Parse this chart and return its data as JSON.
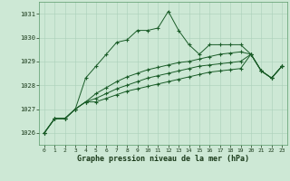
{
  "title": "Graphe pression niveau de la mer (hPa)",
  "background_color": "#cde8d5",
  "plot_bg_color": "#cde8d5",
  "grid_color": "#aacfba",
  "line_color": "#1a5c28",
  "ylim": [
    1025.5,
    1031.5
  ],
  "xlim": [
    -0.5,
    23.5
  ],
  "yticks": [
    1026,
    1027,
    1028,
    1029,
    1030,
    1031
  ],
  "xticks": [
    0,
    1,
    2,
    3,
    4,
    5,
    6,
    7,
    8,
    9,
    10,
    11,
    12,
    13,
    14,
    15,
    16,
    17,
    18,
    19,
    20,
    21,
    22,
    23
  ],
  "series": [
    [
      1026.0,
      1026.6,
      1026.6,
      1027.0,
      1028.3,
      1028.8,
      1029.3,
      1029.8,
      1029.9,
      1030.3,
      1030.3,
      1030.4,
      1031.1,
      1030.3,
      1029.7,
      1029.3,
      1029.7,
      1029.7,
      1029.7,
      1029.7,
      1029.3,
      1028.6,
      1028.3,
      1028.8
    ],
    [
      1026.0,
      1026.6,
      1026.6,
      1027.0,
      1027.3,
      1027.65,
      1027.9,
      1028.15,
      1028.35,
      1028.5,
      1028.65,
      1028.75,
      1028.85,
      1028.95,
      1029.0,
      1029.1,
      1029.2,
      1029.3,
      1029.35,
      1029.4,
      1029.3,
      1028.6,
      1028.3,
      1028.8
    ],
    [
      1026.0,
      1026.6,
      1026.6,
      1027.0,
      1027.3,
      1027.45,
      1027.65,
      1027.85,
      1028.0,
      1028.15,
      1028.3,
      1028.4,
      1028.5,
      1028.6,
      1028.7,
      1028.8,
      1028.85,
      1028.9,
      1028.95,
      1029.0,
      1029.3,
      1028.6,
      1028.3,
      1028.8
    ],
    [
      1026.0,
      1026.6,
      1026.6,
      1027.0,
      1027.3,
      1027.3,
      1027.45,
      1027.6,
      1027.75,
      1027.85,
      1027.95,
      1028.05,
      1028.15,
      1028.25,
      1028.35,
      1028.45,
      1028.55,
      1028.6,
      1028.65,
      1028.7,
      1029.3,
      1028.6,
      1028.3,
      1028.8
    ]
  ]
}
